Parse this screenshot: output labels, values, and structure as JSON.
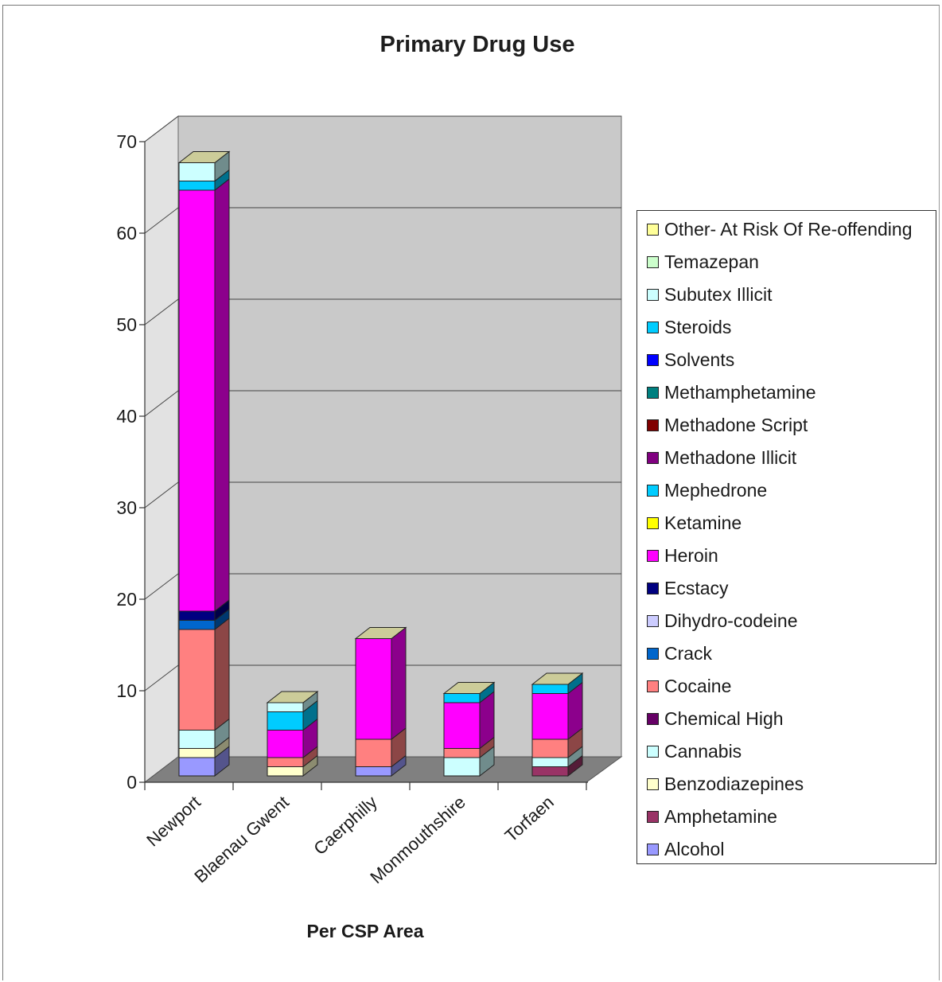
{
  "chart_data": {
    "type": "bar",
    "stacked": true,
    "three_d": true,
    "title": "Primary Drug Use",
    "xlabel": "Per CSP Area",
    "ylabel": "",
    "ylim": [
      0,
      70
    ],
    "yticks": [
      0,
      10,
      20,
      30,
      40,
      50,
      60,
      70
    ],
    "grid": true,
    "legend_position": "right",
    "categories": [
      "Newport",
      "Blaenau Gwent",
      "Caerphilly",
      "Monmouthshire",
      "Torfaen"
    ],
    "series": [
      {
        "name": "Alcohol",
        "color": "#9999ff",
        "values": [
          2,
          0,
          1,
          0,
          0
        ]
      },
      {
        "name": "Amphetamine",
        "color": "#993366",
        "values": [
          0,
          0,
          0,
          0,
          1
        ]
      },
      {
        "name": "Benzodiazepines",
        "color": "#ffffcc",
        "values": [
          1,
          1,
          0,
          0,
          0
        ]
      },
      {
        "name": "Cannabis",
        "color": "#ccffff",
        "values": [
          2,
          0,
          0,
          2,
          1
        ]
      },
      {
        "name": "Chemical High",
        "color": "#660066",
        "values": [
          0,
          0,
          0,
          0,
          0
        ]
      },
      {
        "name": "Cocaine",
        "color": "#ff8080",
        "values": [
          11,
          1,
          3,
          1,
          2
        ]
      },
      {
        "name": "Crack",
        "color": "#0066cc",
        "values": [
          1,
          0,
          0,
          0,
          0
        ]
      },
      {
        "name": "Dihydro-codeine",
        "color": "#ccccff",
        "values": [
          0,
          0,
          0,
          0,
          0
        ]
      },
      {
        "name": "Ecstacy",
        "color": "#000080",
        "values": [
          1,
          0,
          0,
          0,
          0
        ]
      },
      {
        "name": "Heroin",
        "color": "#ff00ff",
        "values": [
          46,
          3,
          11,
          5,
          5
        ]
      },
      {
        "name": "Ketamine",
        "color": "#ffff00",
        "values": [
          0,
          0,
          0,
          0,
          0
        ]
      },
      {
        "name": "Mephedrone",
        "color": "#00ccff",
        "values": [
          0,
          0,
          0,
          0,
          0
        ]
      },
      {
        "name": "Methadone Illicit",
        "color": "#800080",
        "values": [
          0,
          0,
          0,
          0,
          0
        ]
      },
      {
        "name": "Methadone Script",
        "color": "#800000",
        "values": [
          0,
          0,
          0,
          0,
          0
        ]
      },
      {
        "name": "Methamphetamine",
        "color": "#008080",
        "values": [
          0,
          0,
          0,
          0,
          0
        ]
      },
      {
        "name": "Solvents",
        "color": "#0000ff",
        "values": [
          0,
          0,
          0,
          0,
          0
        ]
      },
      {
        "name": "Steroids",
        "color": "#00ccff",
        "values": [
          1,
          2,
          0,
          1,
          1
        ]
      },
      {
        "name": "Subutex Illicit",
        "color": "#ccffff",
        "values": [
          2,
          1,
          0,
          0,
          0
        ]
      },
      {
        "name": "Temazepan",
        "color": "#ccffcc",
        "values": [
          0,
          0,
          0,
          0,
          0
        ]
      },
      {
        "name": "Other- At Risk Of Re-offending",
        "color": "#ffff99",
        "values": [
          0,
          0,
          0,
          0,
          0
        ]
      }
    ],
    "legend_order": [
      "Other- At Risk Of Re-offending",
      "Temazepan",
      "Subutex Illicit",
      "Steroids",
      "Solvents",
      "Methamphetamine",
      "Methadone Script",
      "Methadone Illicit",
      "Mephedrone",
      "Ketamine",
      "Heroin",
      "Ecstacy",
      "Dihydro-codeine",
      "Crack",
      "Cocaine",
      "Chemical High",
      "Cannabis",
      "Benzodiazepines",
      "Amphetamine",
      "Alcohol"
    ]
  }
}
